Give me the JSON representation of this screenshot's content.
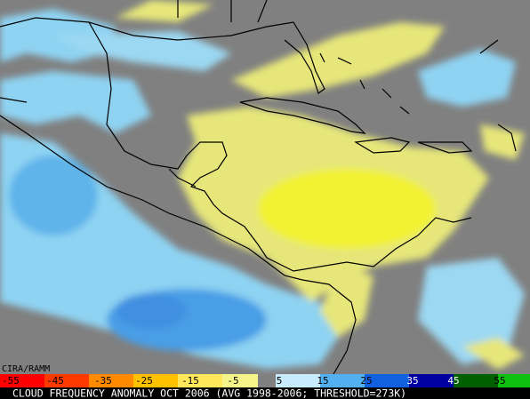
{
  "credit": "CIRA/RAMM",
  "legend": {
    "labels": [
      "-55",
      "-45",
      "-35",
      "-25",
      "-15",
      "-5",
      "5",
      "15",
      "25",
      "35",
      "45",
      "55"
    ]
  },
  "caption": "CLOUD FREQUENCY ANOMALY OCT 2006 (AVG 1998-2006; THRESHOLD=273K)"
}
